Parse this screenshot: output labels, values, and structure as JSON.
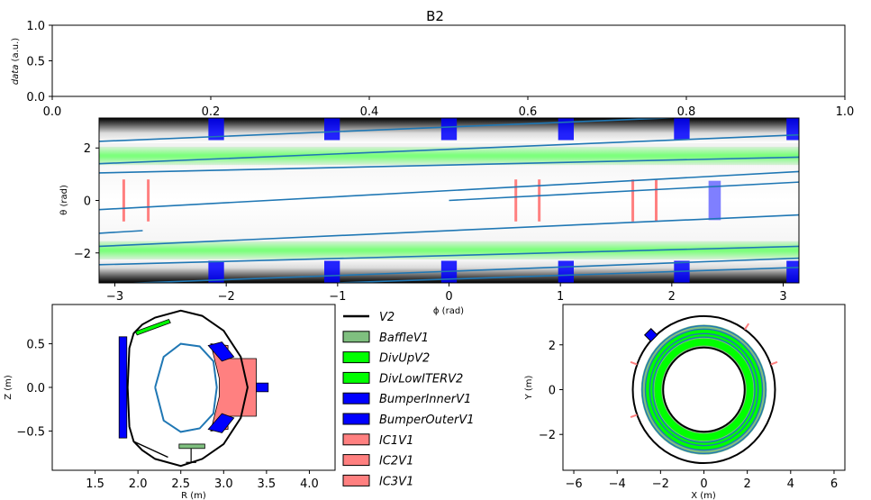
{
  "title": "B2",
  "chart_data": [
    {
      "type": "line",
      "name": "data-axes",
      "ylabel_var": "data",
      "ylabel_unit": " (a.u.)",
      "xlim": [
        0.0,
        1.0
      ],
      "ylim": [
        0.0,
        1.0
      ],
      "xticks": [
        "0.0",
        "0.2",
        "0.4",
        "0.6",
        "0.8",
        "1.0"
      ],
      "yticks": [
        "0.0",
        "0.5",
        "1.0"
      ],
      "series": []
    },
    {
      "type": "heatmap",
      "name": "phi-theta-map",
      "xlabel": "ϕ (rad)",
      "ylabel": "θ (rad)",
      "xlim": [
        -3.14159,
        3.14159
      ],
      "ylim": [
        -3.14159,
        3.14159
      ],
      "xticks": [
        -3,
        -2,
        -1,
        0,
        1,
        2,
        3
      ],
      "yticks": [
        -2,
        0,
        2
      ],
      "divertor_bands_theta": [
        [
          1.35,
          2.05
        ],
        [
          -2.25,
          -1.55
        ]
      ],
      "bumper_phi_centers": [
        -2.09,
        -1.05,
        0.0,
        1.05,
        2.09,
        3.1
      ],
      "bumper_width": 0.14,
      "bumper_theta_extent": [
        2.3,
        3.14159
      ],
      "ic_antennas_phi": [
        -2.92,
        -2.7,
        0.6,
        0.81,
        1.65,
        1.86
      ],
      "ic_antenna_theta": [
        -0.8,
        0.8
      ],
      "port_rect": {
        "phi": [
          2.33,
          2.44
        ],
        "theta": [
          -0.75,
          0.75
        ]
      },
      "field_lines": [
        {
          "phi": [
            -3.14159,
            3.14159
          ],
          "theta": [
            2.25,
            3.35
          ]
        },
        {
          "phi": [
            -3.14159,
            3.14159
          ],
          "theta": [
            1.4,
            2.5
          ]
        },
        {
          "phi": [
            -3.14159,
            3.14159
          ],
          "theta": [
            1.05,
            1.65
          ]
        },
        {
          "phi": [
            -3.14159,
            3.14159
          ],
          "theta": [
            -0.35,
            1.1
          ]
        },
        {
          "phi": [
            0.0,
            3.14159
          ],
          "theta": [
            0.0,
            0.7
          ]
        },
        {
          "phi": [
            -3.14159,
            -2.75
          ],
          "theta": [
            -1.25,
            -1.15
          ]
        },
        {
          "phi": [
            -3.14159,
            3.14159
          ],
          "theta": [
            -1.75,
            -0.55
          ]
        },
        {
          "phi": [
            -3.14159,
            3.14159
          ],
          "theta": [
            -2.45,
            -1.75
          ]
        },
        {
          "phi": [
            -3.14159,
            3.14159
          ],
          "theta": [
            -3.2,
            -2.2
          ]
        },
        {
          "phi": [
            -1.0,
            3.14159
          ],
          "theta": [
            -3.14159,
            -2.55
          ]
        }
      ]
    },
    {
      "type": "scatter",
      "name": "poloidal-cross-section",
      "xlabel": "R (m)",
      "ylabel": "Z (m)",
      "xlim": [
        1.0,
        4.3
      ],
      "ylim": [
        -0.95,
        0.95
      ],
      "xticks": [
        "1.5",
        "2.0",
        "2.5",
        "3.0",
        "3.5",
        "4.0"
      ],
      "yticks": [
        "-0.5",
        "0.0",
        "0.5"
      ],
      "vessel_outline": [
        [
          1.88,
          0.0
        ],
        [
          1.9,
          0.45
        ],
        [
          1.95,
          0.62
        ],
        [
          2.05,
          0.72
        ],
        [
          2.2,
          0.8
        ],
        [
          2.5,
          0.88
        ],
        [
          2.75,
          0.82
        ],
        [
          3.0,
          0.65
        ],
        [
          3.2,
          0.35
        ],
        [
          3.28,
          0.0
        ],
        [
          3.2,
          -0.35
        ],
        [
          3.0,
          -0.65
        ],
        [
          2.75,
          -0.82
        ],
        [
          2.5,
          -0.9
        ],
        [
          2.2,
          -0.82
        ],
        [
          2.05,
          -0.72
        ],
        [
          1.95,
          -0.62
        ],
        [
          1.9,
          -0.45
        ],
        [
          1.88,
          0.0
        ]
      ],
      "plasma_outline": [
        [
          2.2,
          0.0
        ],
        [
          2.3,
          0.35
        ],
        [
          2.5,
          0.5
        ],
        [
          2.72,
          0.47
        ],
        [
          2.88,
          0.3
        ],
        [
          2.92,
          0.0
        ],
        [
          2.88,
          -0.3
        ],
        [
          2.72,
          -0.47
        ],
        [
          2.5,
          -0.51
        ],
        [
          2.3,
          -0.38
        ],
        [
          2.2,
          0.0
        ]
      ],
      "ic_antenna_poly": [
        [
          2.85,
          0.5
        ],
        [
          3.05,
          0.48
        ],
        [
          3.05,
          0.33
        ],
        [
          3.38,
          0.33
        ],
        [
          3.38,
          -0.33
        ],
        [
          3.05,
          -0.33
        ],
        [
          3.05,
          -0.48
        ],
        [
          2.85,
          -0.5
        ],
        [
          2.95,
          -0.1
        ],
        [
          2.95,
          0.1
        ]
      ],
      "bumper_inner_rect": {
        "r": [
          1.78,
          1.87
        ],
        "z": [
          -0.58,
          0.58
        ]
      },
      "bumper_outer_rect": {
        "r": [
          3.38,
          3.52
        ],
        "z": [
          -0.05,
          0.05
        ]
      },
      "divertor_up_rect": {
        "r": [
          1.97,
          2.38
        ],
        "z": [
          0.62,
          0.72
        ]
      },
      "baffle_rect": {
        "r": [
          2.48,
          2.78
        ],
        "z": [
          -0.7,
          -0.65
        ]
      }
    },
    {
      "type": "scatter",
      "name": "top-view",
      "xlabel": "X (m)",
      "ylabel": "Y (m)",
      "xlim": [
        -6.5,
        6.5
      ],
      "ylim": [
        -3.6,
        3.8
      ],
      "xticks": [
        "−6",
        "−4",
        "−2",
        "0",
        "2",
        "4",
        "6"
      ],
      "yticks": [
        "−2",
        "0",
        "2"
      ],
      "inner_wall_radius": 1.88,
      "outer_wall_radius": 3.28,
      "divertor_ring_radii": [
        2.05,
        2.2,
        2.4,
        2.6
      ],
      "plasma_ring_radii": [
        2.2,
        2.92
      ],
      "bumper_outer_angles_deg": [
        135
      ]
    }
  ],
  "legend": {
    "entries": [
      {
        "label": "V2",
        "kind": "line",
        "color": "#000000"
      },
      {
        "label": "BaffleV1",
        "kind": "patch",
        "color": "#7fbf7f"
      },
      {
        "label": "DivUpV2",
        "kind": "patch",
        "color": "#00ff00"
      },
      {
        "label": "DivLowITERV2",
        "kind": "patch",
        "color": "#00ff00"
      },
      {
        "label": "BumperInnerV1",
        "kind": "patch",
        "color": "#0000ff"
      },
      {
        "label": "BumperOuterV1",
        "kind": "patch",
        "color": "#0000ff"
      },
      {
        "label": "IC1V1",
        "kind": "patch",
        "color": "#ff8080"
      },
      {
        "label": "IC2V1",
        "kind": "patch",
        "color": "#ff8080"
      },
      {
        "label": "IC3V1",
        "kind": "patch",
        "color": "#ff8080"
      }
    ]
  },
  "colors": {
    "field_line": "#1f77b4",
    "divertor": "#00ff00",
    "bumper": "#0000ff",
    "ic": "#ff8080",
    "baffle": "#7fbf7f"
  }
}
